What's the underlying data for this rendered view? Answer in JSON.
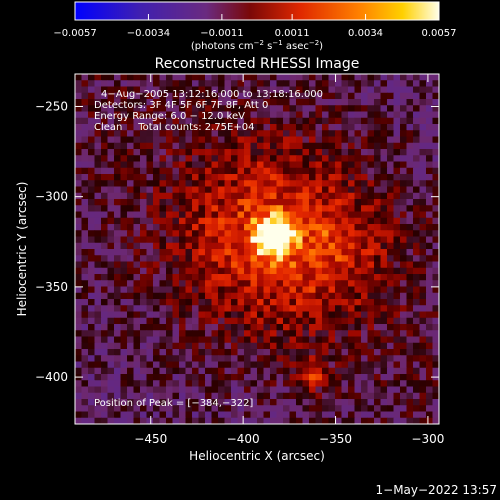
{
  "chart_data": {
    "type": "heatmap",
    "title": "Reconstructed RHESSI Image",
    "xlabel": "Heliocentric X (arcsec)",
    "ylabel": "Heliocentric Y (arcsec)",
    "x_ticks": [
      -450,
      -400,
      -350,
      -300
    ],
    "x_tick_labels": [
      "−450",
      "−400",
      "−350",
      "−300"
    ],
    "y_ticks": [
      -250,
      -300,
      -350,
      -400
    ],
    "y_tick_labels": [
      "−250",
      "−300",
      "−350",
      "−400"
    ],
    "xlim": [
      -491,
      -294
    ],
    "ylim": [
      -426,
      -232
    ],
    "colorbar": {
      "ticks": [
        -0.0057,
        -0.0034,
        -0.0011,
        0.0011,
        0.0034,
        0.0057
      ],
      "tick_labels": [
        "−0.0057",
        "−0.0034",
        "−0.0011",
        "0.0011",
        "0.0034",
        "0.0057"
      ],
      "range": [
        -0.0057,
        0.0057
      ],
      "colormap": "blue-purple-red-yellow-white"
    },
    "units_label": "(photons cm",
    "units_exp1": "−2",
    "units_mid": " s",
    "units_exp2": "−1",
    "units_mid2": " asec",
    "units_exp3": "−2",
    "units_end": ")",
    "info_lines": [
      "4−Aug−2005 13:12:16.000 to 13:18:16.000",
      "Detectors: 3F 4F 5F 6F 7F 8F, Att 0",
      "Energy Range: 6.0 − 12.0 keV",
      "Clean     Total counts: 2.75E+04"
    ],
    "peak_label": "Position of Peak = [−384,−322]",
    "peak": {
      "x": -384,
      "y": -322,
      "value": 0.0057
    },
    "secondary_source": {
      "x": -362,
      "y": -399
    }
  },
  "footer_timestamp": "1−May−2022 13:57",
  "colors": {
    "background": "#000000",
    "frame": "#ffffff",
    "colormap_stops": [
      "#0000ff",
      "#4020a8",
      "#6a2a80",
      "#8a1010",
      "#d82000",
      "#ff6000",
      "#ffc000",
      "#ffffff"
    ]
  }
}
